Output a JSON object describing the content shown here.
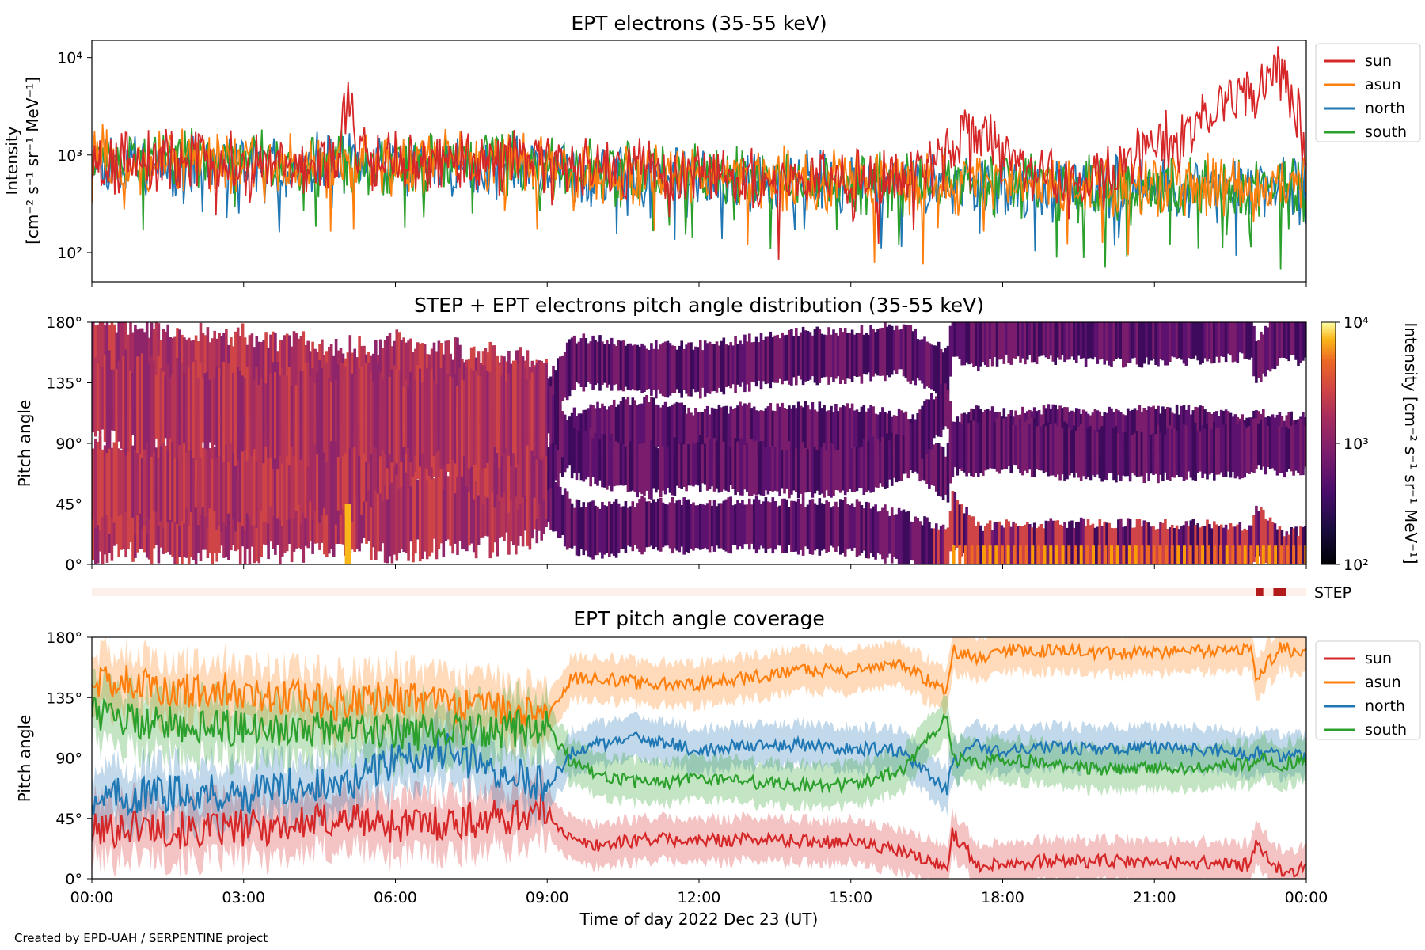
{
  "chart_data": [
    {
      "type": "line",
      "title": "EPT electrons (35-55 keV)",
      "ylabel": [
        "Intensity",
        "[cm⁻² s⁻¹ sr⁻¹ MeV⁻¹]"
      ],
      "yscale": "log",
      "ylim": [
        50,
        15000
      ],
      "yticks": [
        {
          "v": 100,
          "label": "10²"
        },
        {
          "v": 1000,
          "label": "10³"
        },
        {
          "v": 10000,
          "label": "10⁴"
        }
      ],
      "xlim": [
        0,
        24
      ],
      "legend_position": "right-top",
      "legend": [
        "sun",
        "asun",
        "north",
        "south"
      ],
      "series": [
        {
          "name": "sun",
          "color": "#d62728",
          "x": [
            0,
            1,
            2,
            3,
            4,
            4.9,
            5.05,
            5.2,
            6,
            7,
            8,
            9,
            10,
            11,
            12,
            13,
            14,
            15,
            16,
            17,
            17.4,
            18,
            19,
            20,
            20.6,
            21,
            21.5,
            22,
            22.5,
            23,
            23.5,
            24
          ],
          "y": [
            800,
            900,
            850,
            850,
            800,
            900,
            4500,
            1200,
            850,
            900,
            900,
            800,
            750,
            700,
            650,
            600,
            600,
            550,
            550,
            1000,
            2000,
            900,
            600,
            550,
            900,
            1500,
            1200,
            2500,
            3000,
            5000,
            6500,
            700
          ]
        },
        {
          "name": "asun",
          "color": "#ff7f0e",
          "x": [
            0,
            1,
            2,
            3,
            4,
            5,
            6,
            7,
            8,
            9,
            10,
            11,
            12,
            13,
            14,
            15,
            16,
            17,
            18,
            19,
            20,
            21,
            22,
            23,
            24
          ],
          "y": [
            1000,
            900,
            850,
            800,
            800,
            750,
            850,
            850,
            800,
            700,
            650,
            650,
            600,
            600,
            550,
            550,
            550,
            500,
            500,
            500,
            500,
            480,
            480,
            450,
            500
          ]
        },
        {
          "name": "north",
          "color": "#1f77b4",
          "x": [
            0,
            1,
            2,
            3,
            4,
            5,
            6,
            7,
            8,
            9,
            10,
            11,
            12,
            13,
            14,
            15,
            16,
            17,
            18,
            19,
            20,
            21,
            22,
            23,
            24
          ],
          "y": [
            900,
            850,
            800,
            800,
            750,
            750,
            800,
            800,
            750,
            700,
            650,
            600,
            600,
            550,
            550,
            500,
            500,
            500,
            450,
            450,
            450,
            420,
            420,
            420,
            450
          ]
        },
        {
          "name": "south",
          "color": "#2ca02c",
          "x": [
            0,
            1,
            2,
            3,
            4,
            5,
            6,
            7,
            8,
            9,
            10,
            11,
            12,
            13,
            14,
            15,
            16,
            17,
            18,
            19,
            20,
            21,
            22,
            23,
            24
          ],
          "y": [
            1000,
            950,
            900,
            900,
            850,
            800,
            900,
            900,
            850,
            750,
            700,
            650,
            600,
            600,
            550,
            550,
            500,
            520,
            500,
            480,
            480,
            450,
            450,
            430,
            450
          ]
        }
      ]
    },
    {
      "type": "heatmap",
      "title": "STEP + EPT electrons pitch angle distribution (35-55 keV)",
      "ylabel": "Pitch angle",
      "ylim": [
        0,
        180
      ],
      "yticks": [
        "0°",
        "45°",
        "90°",
        "135°",
        "180°"
      ],
      "xlim": [
        0,
        24
      ],
      "colorscale": "inferno",
      "colorbar": {
        "label": "Intensity [cm⁻² s⁻¹ sr⁻¹ MeV⁻¹]",
        "scale": "log",
        "range": [
          100,
          10000
        ],
        "ticks": [
          "10²",
          "10³",
          "10⁴"
        ]
      }
    },
    {
      "type": "line",
      "title": "STEP",
      "description_flag": "STEP availability strip",
      "segments": [
        [
          23.0,
          23.15
        ],
        [
          23.35,
          23.6
        ]
      ]
    },
    {
      "type": "line",
      "title": "EPT pitch angle coverage",
      "ylabel": "Pitch angle",
      "xlabel": "Time of day 2022 Dec 23 (UT)",
      "ylim": [
        0,
        180
      ],
      "yticks": [
        "0°",
        "45°",
        "90°",
        "135°",
        "180°"
      ],
      "xticks": [
        "00:00",
        "03:00",
        "06:00",
        "09:00",
        "12:00",
        "15:00",
        "18:00",
        "21:00",
        "00:00"
      ],
      "xlim": [
        0,
        24
      ],
      "legend_position": "right-top",
      "legend": [
        "sun",
        "asun",
        "north",
        "south"
      ],
      "series": [
        {
          "name": "sun",
          "color": "#d62728",
          "x": [
            0,
            1,
            2,
            3,
            4,
            5,
            6,
            7,
            8,
            9,
            9.5,
            10,
            11,
            12,
            13,
            14,
            15,
            16,
            16.9,
            17,
            17.5,
            18,
            19,
            20,
            21,
            22,
            22.9,
            23,
            23.5,
            24
          ],
          "y": [
            35,
            40,
            35,
            38,
            40,
            45,
            40,
            42,
            45,
            50,
            28,
            25,
            30,
            28,
            30,
            28,
            28,
            20,
            8,
            35,
            10,
            12,
            13,
            13,
            12,
            12,
            10,
            25,
            5,
            8
          ]
        },
        {
          "name": "asun",
          "color": "#ff7f0e",
          "x": [
            0,
            1,
            2,
            3,
            4,
            5,
            6,
            7,
            8,
            9,
            9.5,
            10,
            11,
            12,
            13,
            14,
            15,
            16,
            16.9,
            17,
            17.5,
            18,
            19,
            20,
            21,
            22,
            22.9,
            23,
            23.5,
            24
          ],
          "y": [
            150,
            145,
            140,
            140,
            135,
            130,
            135,
            130,
            125,
            120,
            150,
            150,
            145,
            145,
            150,
            155,
            155,
            160,
            140,
            170,
            165,
            170,
            170,
            168,
            168,
            170,
            172,
            150,
            172,
            168
          ]
        },
        {
          "name": "north",
          "color": "#1f77b4",
          "x": [
            0,
            1,
            2,
            3,
            4,
            5,
            6,
            7,
            8,
            9,
            9.5,
            10,
            11,
            12,
            13,
            14,
            15,
            16,
            16.9,
            17,
            17.5,
            18,
            19,
            20,
            21,
            22,
            22.9,
            23,
            23.5,
            24
          ],
          "y": [
            60,
            62,
            65,
            62,
            70,
            68,
            90,
            95,
            80,
            70,
            95,
            100,
            105,
            95,
            100,
            100,
            98,
            95,
            65,
            85,
            100,
            95,
            98,
            96,
            98,
            96,
            92,
            95,
            92,
            92
          ]
        },
        {
          "name": "south",
          "color": "#2ca02c",
          "x": [
            0,
            1,
            2,
            3,
            4,
            5,
            6,
            7,
            8,
            9,
            9.5,
            10,
            11,
            12,
            13,
            14,
            15,
            16,
            16.9,
            17,
            17.5,
            18,
            19,
            20,
            21,
            22,
            22.9,
            23,
            23.5,
            24
          ],
          "y": [
            125,
            118,
            115,
            112,
            110,
            115,
            110,
            108,
            110,
            115,
            85,
            78,
            70,
            75,
            72,
            70,
            70,
            80,
            120,
            90,
            85,
            90,
            85,
            82,
            82,
            84,
            85,
            90,
            85,
            88
          ]
        }
      ]
    }
  ],
  "footer": {
    "credit": "Created by EPD-UAH / SERPENTINE project"
  }
}
